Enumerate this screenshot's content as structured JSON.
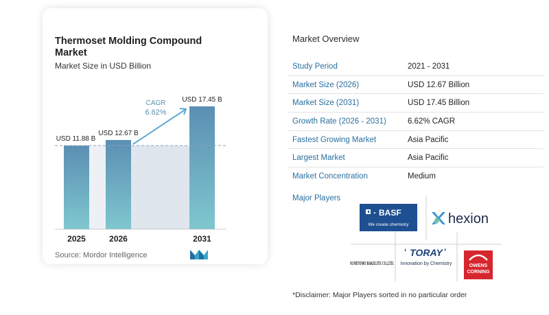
{
  "chart": {
    "title": "Thermoset Molding Compound Market",
    "subtitle": "Market Size in USD Billion",
    "source": "Source: Mordor Intelligence",
    "cagr_label": "CAGR",
    "cagr_value": "6.62%"
  },
  "chart_data": {
    "type": "bar",
    "title": "Thermoset Molding Compound Market",
    "subtitle": "Market Size in USD Billion",
    "categories": [
      "2025",
      "2026",
      "2031"
    ],
    "values": [
      11.88,
      12.67,
      17.45
    ],
    "data_labels": [
      "USD 11.88 B",
      "USD 12.67 B",
      "USD 17.45 B"
    ],
    "annotation": {
      "label": "CAGR",
      "value": "6.62%"
    },
    "ylim": [
      0,
      17.45
    ],
    "grid": false,
    "colors": {
      "bar_top": "#5b8fb3",
      "bar_bottom": "#7fc7cf",
      "band": "#dfe6ee",
      "arrow": "#5aa8d0"
    }
  },
  "overview": {
    "title": "Market Overview",
    "rows": [
      {
        "label": "Study Period",
        "value": "2021 - 2031"
      },
      {
        "label": "Market Size (2026)",
        "value": "USD 12.67 Billion"
      },
      {
        "label": "Market Size (2031)",
        "value": "USD 17.45 Billion"
      },
      {
        "label": "Growth Rate (2026 - 2031)",
        "value": "6.62% CAGR"
      },
      {
        "label": "Fastest Growing Market",
        "value": "Asia Pacific"
      },
      {
        "label": "Largest Market",
        "value": "Asia Pacific"
      },
      {
        "label": "Market Concentration",
        "value": "Medium"
      }
    ],
    "players_label": "Major Players",
    "disclaimer": "*Disclaimer: Major Players sorted in no particular order"
  },
  "logos": {
    "basf": {
      "name": "BASF",
      "tagline": "We create chemistry",
      "color": "#1d4f91"
    },
    "hexion": {
      "name": "hexion",
      "color": "#1b2a4a"
    },
    "toray": {
      "name": "TORAY",
      "tagline": "Innovation by Chemistry",
      "color": "#1d3f7a"
    },
    "sumitomo": {
      "name": "SUMITOMO BAKELITE CO.,LTD."
    },
    "owens": {
      "name": "OWENS CORNING",
      "color": "#d6262e"
    }
  },
  "colors": {
    "accent_label": "#2a6f9e",
    "card_shadow": "rgba(0,0,0,0.12)"
  }
}
